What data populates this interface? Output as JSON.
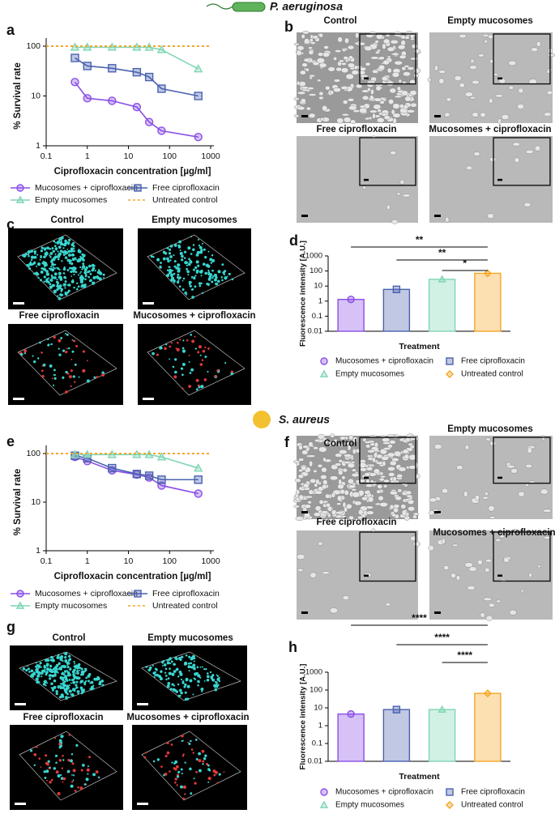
{
  "sections": [
    {
      "organism": "P. aeruginosa"
    },
    {
      "organism": "S. aureus"
    }
  ],
  "panels": [
    "a",
    "b",
    "c",
    "d",
    "e",
    "f",
    "g",
    "h"
  ],
  "image_panels": [
    {
      "captions": [
        "Control",
        "Empty mucosomes",
        "Free ciprofloxacin",
        "Mucosomes + ciprofloxacin"
      ]
    },
    {
      "captions": [
        "Control",
        "Empty mucosomes",
        "Free ciprofloxacin",
        "Mucosomes + ciprofloxacin"
      ]
    },
    {
      "captions": [
        "Control",
        "Empty mucosomes",
        "Free ciprofloxacin",
        "Mucosomes + ciprofloxacin"
      ]
    },
    {
      "captions": [
        "Control",
        "Empty mucosomes",
        "Free ciprofloxacin",
        "Mucosomes + ciprofloxacin"
      ]
    }
  ],
  "chart_data": [
    {
      "type": "line",
      "xlabel": "Ciprofloxacin concentration [µg/ml]",
      "ylabel": "% Survival rate",
      "log_x": true,
      "log_y": true,
      "xlim": [
        0.1,
        1000
      ],
      "ylim": [
        1,
        100
      ],
      "xticks": [
        0.1,
        1,
        10,
        100,
        1000
      ],
      "yticks": [
        1,
        10,
        100
      ],
      "series": [
        {
          "name": "Mucosomes + ciprofloxacin",
          "color": "#8a4fe6",
          "marker": "circle",
          "x": [
            0.5,
            1,
            4,
            16,
            32,
            64,
            500
          ],
          "values": [
            19,
            9,
            8,
            6,
            3,
            2,
            1.5
          ]
        },
        {
          "name": "Free ciprofloxacin",
          "color": "#4a62b0",
          "marker": "square",
          "x": [
            0.5,
            1,
            4,
            16,
            32,
            64,
            500
          ],
          "values": [
            58,
            40,
            36,
            30,
            24,
            14,
            10
          ]
        },
        {
          "name": "Empty mucosomes",
          "color": "#7fd6b4",
          "marker": "triangle",
          "x": [
            0.5,
            1,
            4,
            16,
            32,
            64,
            500
          ],
          "values": [
            95,
            95,
            95,
            95,
            95,
            85,
            35
          ]
        },
        {
          "name": "Untreated control",
          "color": "#f5a623",
          "style": "dashed",
          "x": [
            0.1,
            1000
          ],
          "values": [
            100,
            100
          ]
        }
      ]
    },
    {
      "type": "bar",
      "xlabel": "Treatment",
      "ylabel": "Fluorescence intensity [A.U.]",
      "log_y": true,
      "ylim": [
        0.01,
        1000
      ],
      "yticks": [
        0.01,
        0.1,
        1,
        10,
        100,
        1000
      ],
      "categories": [
        null,
        null,
        null,
        null
      ],
      "values": [
        1.3,
        6,
        28,
        70
      ],
      "colors": [
        "#8a4fe6",
        "#4a62b0",
        "#7fd6b4",
        "#f5a623"
      ],
      "markers": [
        "circle",
        "square",
        "triangle",
        "diamond"
      ],
      "legend": [
        "Mucosomes + ciprofloxacin",
        "Free ciprofloxacin",
        "Empty mucosomes",
        "Untreated control"
      ],
      "significance": [
        "**",
        "**",
        "*"
      ]
    },
    {
      "type": "line",
      "xlabel": "Ciprofloxacin concentration [µg/ml]",
      "ylabel": "% Survival rate",
      "log_x": true,
      "log_y": true,
      "xlim": [
        0.1,
        1000
      ],
      "ylim": [
        1,
        100
      ],
      "xticks": [
        0.1,
        1,
        10,
        100,
        1000
      ],
      "yticks": [
        1,
        10,
        100
      ],
      "series": [
        {
          "name": "Mucosomes + ciprofloxacin",
          "color": "#8a4fe6",
          "marker": "circle",
          "x": [
            0.5,
            1,
            4,
            16,
            32,
            64,
            500
          ],
          "values": [
            85,
            70,
            45,
            37,
            32,
            22,
            15
          ]
        },
        {
          "name": "Free ciprofloxacin",
          "color": "#4a62b0",
          "marker": "square",
          "x": [
            0.5,
            1,
            4,
            16,
            32,
            64,
            500
          ],
          "values": [
            90,
            80,
            50,
            38,
            35,
            29,
            29
          ]
        },
        {
          "name": "Empty mucosomes",
          "color": "#7fd6b4",
          "marker": "triangle",
          "x": [
            0.5,
            1,
            4,
            16,
            32,
            64,
            500
          ],
          "values": [
            95,
            95,
            95,
            95,
            95,
            85,
            50
          ]
        },
        {
          "name": "Untreated control",
          "color": "#f5a623",
          "style": "dashed",
          "x": [
            0.1,
            1000
          ],
          "values": [
            100,
            100
          ]
        }
      ]
    },
    {
      "type": "bar",
      "xlabel": "Treatment",
      "ylabel": "Fluorescence intensity [A.U.]",
      "log_y": true,
      "ylim": [
        0.01,
        1000
      ],
      "yticks": [
        0.01,
        0.1,
        1,
        10,
        100,
        1000
      ],
      "categories": [
        null,
        null,
        null,
        null
      ],
      "values": [
        4.5,
        8,
        8,
        65
      ],
      "colors": [
        "#8a4fe6",
        "#4a62b0",
        "#7fd6b4",
        "#f5a623"
      ],
      "markers": [
        "circle",
        "square",
        "triangle",
        "diamond"
      ],
      "legend": [
        "Mucosomes + ciprofloxacin",
        "Free ciprofloxacin",
        "Empty mucosomes",
        "Untreated control"
      ],
      "significance": [
        "****",
        "****",
        "****"
      ]
    }
  ]
}
